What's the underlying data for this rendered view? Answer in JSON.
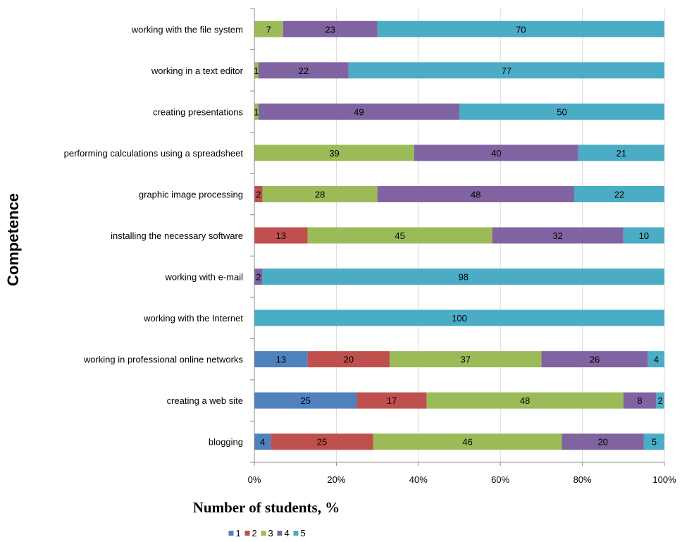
{
  "chart_data": {
    "type": "bar",
    "orientation": "horizontal",
    "stacked": "percent",
    "ylabel": "Competence",
    "xlabel": "Number of students, %",
    "xlim": [
      0,
      100
    ],
    "x_ticks": [
      "0%",
      "20%",
      "40%",
      "60%",
      "80%",
      "100%"
    ],
    "grid": true,
    "legend_position": "bottom",
    "categories": [
      "working with the file system",
      "working in a text editor",
      "creating presentations",
      "performing calculations using a spreadsheet",
      "graphic image processing",
      "installing the necessary software",
      "working with e-mail",
      "working with the Internet",
      "working in professional online networks",
      "creating a web site",
      "blogging"
    ],
    "series": [
      {
        "name": "1",
        "color": "#4F81BD",
        "values": [
          0,
          0,
          0,
          0,
          0,
          0,
          0,
          0,
          13,
          25,
          4
        ]
      },
      {
        "name": "2",
        "color": "#C0504D",
        "values": [
          0,
          0,
          0,
          0,
          2,
          13,
          0,
          0,
          20,
          17,
          25
        ]
      },
      {
        "name": "3",
        "color": "#9BBB59",
        "values": [
          7,
          1,
          1,
          39,
          28,
          45,
          0,
          0,
          37,
          48,
          46
        ]
      },
      {
        "name": "4",
        "color": "#8064A2",
        "values": [
          23,
          22,
          49,
          40,
          48,
          32,
          2,
          0,
          26,
          8,
          20
        ]
      },
      {
        "name": "5",
        "color": "#4BACC6",
        "values": [
          70,
          77,
          50,
          21,
          22,
          10,
          98,
          100,
          4,
          2,
          5
        ]
      }
    ]
  }
}
